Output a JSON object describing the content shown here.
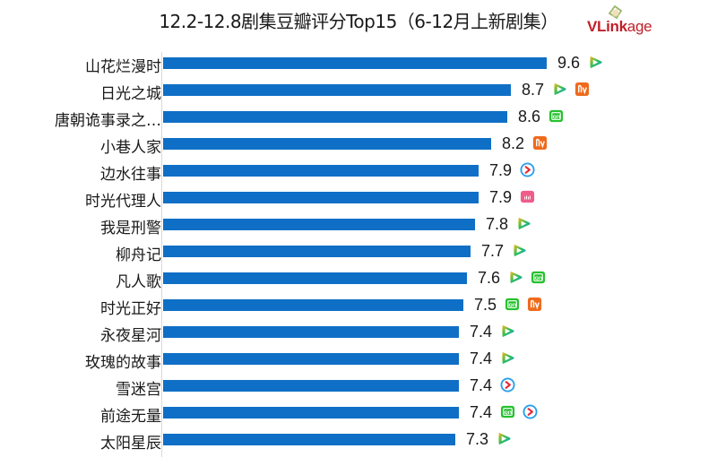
{
  "header": {
    "title": "12.2-12.8剧集豆瓣评分Top15（6-12月上新剧集）",
    "logo_main": "VLink",
    "logo_suffix": "age"
  },
  "platform_icons": {
    "tencent": {
      "name": "tencent-video-icon",
      "colors": [
        "#f9b813",
        "#2dbd5a",
        "#1aa3e8"
      ]
    },
    "mango": {
      "name": "mango-tv-icon",
      "color": "#ee6a1c"
    },
    "iqiyi": {
      "name": "iqiyi-icon",
      "color": "#25c12e"
    },
    "youku": {
      "name": "youku-icon",
      "colors": [
        "#2aa0ea",
        "#e8293b"
      ]
    },
    "bilibili": {
      "name": "bilibili-icon",
      "color": "#ee5c8a"
    }
  },
  "colors": {
    "bar": "#0f6fc6",
    "axis": "#d9d9d9",
    "logo": "#c0202a"
  },
  "chart_data": {
    "type": "bar",
    "orientation": "horizontal",
    "title": "12.2-12.8剧集豆瓣评分Top15（6-12月上新剧集）",
    "xlabel": "",
    "ylabel": "",
    "grid": false,
    "legend": null,
    "categories": [
      "山花烂漫时",
      "日光之城",
      "唐朝诡事录之…",
      "小巷人家",
      "边水往事",
      "时光代理人",
      "我是刑警",
      "柳舟记",
      "凡人歌",
      "时光正好",
      "永夜星河",
      "玫瑰的故事",
      "雪迷宫",
      "前途无量",
      "太阳星辰"
    ],
    "values": [
      9.6,
      8.7,
      8.6,
      8.2,
      7.9,
      7.9,
      7.8,
      7.7,
      7.6,
      7.5,
      7.4,
      7.4,
      7.4,
      7.4,
      7.3
    ],
    "value_labels": [
      "9.6",
      "8.7",
      "8.6",
      "8.2",
      "7.9",
      "7.9",
      "7.8",
      "7.7",
      "7.6",
      "7.5",
      "7.4",
      "7.4",
      "7.4",
      "7.4",
      "7.3"
    ],
    "platforms": [
      [
        "tencent"
      ],
      [
        "tencent",
        "mango"
      ],
      [
        "iqiyi"
      ],
      [
        "mango"
      ],
      [
        "youku"
      ],
      [
        "bilibili"
      ],
      [
        "tencent"
      ],
      [
        "tencent"
      ],
      [
        "tencent",
        "iqiyi"
      ],
      [
        "iqiyi",
        "mango"
      ],
      [
        "tencent"
      ],
      [
        "tencent"
      ],
      [
        "youku"
      ],
      [
        "iqiyi",
        "youku"
      ],
      [
        "tencent"
      ]
    ]
  }
}
